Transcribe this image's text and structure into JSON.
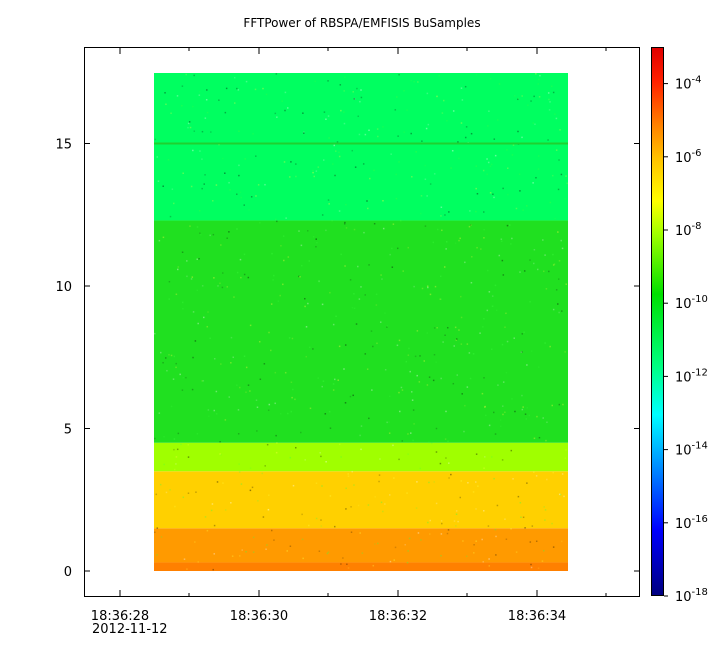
{
  "title": "FFTPower of RBSPA/EMFISIS  BuSamples",
  "chart_data": {
    "type": "heatmap",
    "title": "FFTPower of RBSPA/EMFISIS  BuSamples",
    "xlabel": "",
    "ylabel": "",
    "x_ticks": [
      "18:36:28",
      "18:36:30",
      "18:36:32",
      "18:36:34"
    ],
    "x_date_label": "2012-11-12",
    "y_ticks": [
      0,
      5,
      10,
      15
    ],
    "ylim": [
      -1,
      18
    ],
    "y_range_of_data": [
      0,
      17.5
    ],
    "colorbar": {
      "scale": "log",
      "range": [
        1e-18,
        0.001
      ],
      "tick_labels": [
        {
          "base": "10",
          "exp": "-4"
        },
        {
          "base": "10",
          "exp": "-6"
        },
        {
          "base": "10",
          "exp": "-8"
        },
        {
          "base": "10",
          "exp": "-10"
        },
        {
          "base": "10",
          "exp": "-12"
        },
        {
          "base": "10",
          "exp": "-14"
        },
        {
          "base": "10",
          "exp": "-16"
        },
        {
          "base": "10",
          "exp": "-18"
        }
      ],
      "tick_values_log10": [
        -4,
        -6,
        -8,
        -10,
        -12,
        -14,
        -16,
        -18
      ]
    },
    "bands": [
      {
        "y_from": 0,
        "y_to": 0.3,
        "color": "#ff8000",
        "desc_power": "~1e-7"
      },
      {
        "y_from": 0.3,
        "y_to": 1.5,
        "color": "#ff9a00",
        "desc_power": "~1e-7.5"
      },
      {
        "y_from": 1.5,
        "y_to": 3.5,
        "color": "#ffd000",
        "desc_power": "~1e-8.5"
      },
      {
        "y_from": 3.5,
        "y_to": 4.5,
        "color": "#a0ff00",
        "desc_power": "~1e-9.5"
      },
      {
        "y_from": 4.5,
        "y_to": 12.3,
        "color": "#20e020",
        "desc_power": "~1e-10.5"
      },
      {
        "y_from": 12.3,
        "y_to": 17.5,
        "color": "#00ff60",
        "desc_power": "~1e-11.5"
      }
    ],
    "line_at_y": 15
  }
}
